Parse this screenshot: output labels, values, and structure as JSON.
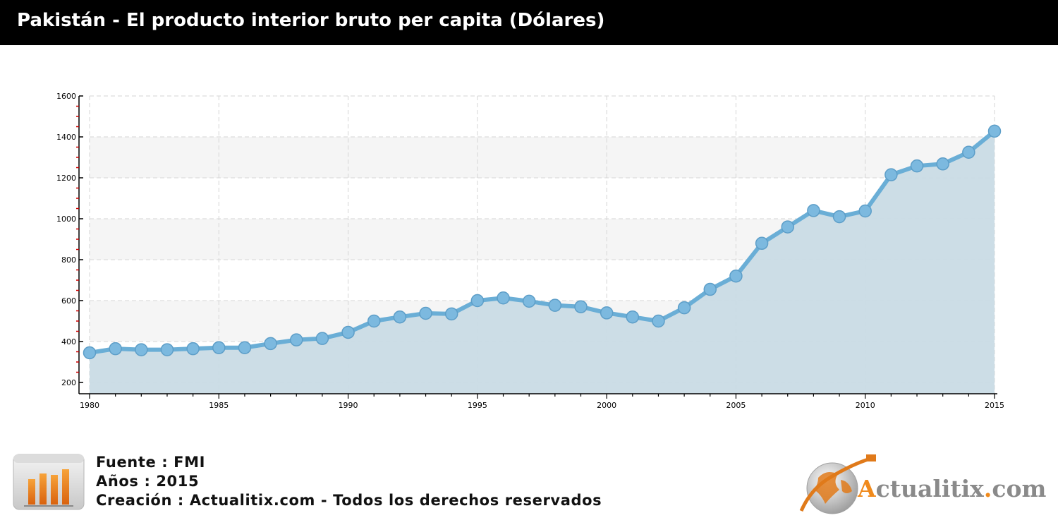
{
  "header": {
    "title": "Pakistán - El producto interior bruto per capita (Dólares)"
  },
  "chart_data": {
    "type": "area",
    "x": [
      1980,
      1981,
      1982,
      1983,
      1984,
      1985,
      1986,
      1987,
      1988,
      1989,
      1990,
      1991,
      1992,
      1993,
      1994,
      1995,
      1996,
      1997,
      1998,
      1999,
      2000,
      2001,
      2002,
      2003,
      2004,
      2005,
      2006,
      2007,
      2008,
      2009,
      2010,
      2011,
      2012,
      2013,
      2014,
      2015
    ],
    "values": [
      345,
      365,
      360,
      360,
      365,
      370,
      370,
      390,
      408,
      415,
      445,
      500,
      520,
      538,
      535,
      600,
      613,
      597,
      577,
      570,
      540,
      520,
      500,
      565,
      655,
      720,
      880,
      960,
      1040,
      1010,
      1038,
      1215,
      1258,
      1268,
      1325,
      1428
    ],
    "xticks": [
      "1980",
      "1985",
      "1990",
      "1995",
      "2000",
      "2005",
      "2010",
      "2015"
    ],
    "yticks": [
      "200",
      "400",
      "600",
      "800",
      "1000",
      "1200",
      "1400",
      "1600"
    ],
    "xlim": [
      1980,
      2015
    ],
    "ylim": [
      200,
      1600
    ],
    "grid": true,
    "colors": {
      "line": "#6aaed6",
      "marker": "#7cb9df",
      "fill": "#c9dbe5",
      "axis_tick_minor": "#cc0000"
    }
  },
  "footer": {
    "source": "Fuente : FMI",
    "years": "Años : 2015",
    "creation": "Creación : Actualitix.com - Todos los derechos reservados",
    "icon": "bar-chart-icon"
  },
  "brand": {
    "name_a": "A",
    "name_rest": "ctualitix",
    "dot": ".",
    "com": "com",
    "icon": "globe-usb-icon"
  }
}
